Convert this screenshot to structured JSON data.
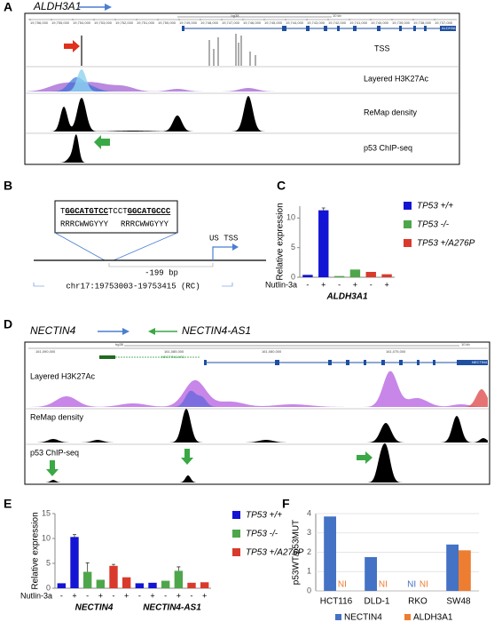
{
  "panel_labels": [
    "A",
    "B",
    "C",
    "D",
    "E",
    "F"
  ],
  "panel_a": {
    "gene": "ALDH3A1",
    "assembly": "hg38",
    "scale": "10 kb",
    "coordinates": [
      "19,756,000",
      "19,755,000",
      "19,754,000",
      "19,753,000",
      "19,752,000",
      "19,751,000",
      "19,750,000",
      "19,749,000",
      "19,748,000",
      "19,747,000",
      "19,746,000",
      "19,745,000",
      "19,744,000",
      "19,743,000",
      "19,742,000",
      "19,741,000",
      "19,740,000",
      "19,739,000",
      "19,738,000",
      "19,737,000"
    ],
    "gene_track_label": "ALDH3A1",
    "tracks": [
      "TSS",
      "Layered H3K27Ac",
      "ReMap density",
      "p53 ChIP-seq"
    ]
  },
  "panel_b": {
    "sequence": [
      "T",
      "GGCATGTCC",
      "TCCT",
      "GGCATGCCC"
    ],
    "motifs": [
      "RRRCWWGYYY",
      "RRRCWWGYYY"
    ],
    "distance": "-199 bp",
    "tss": "US TSS",
    "region": "chr17:19753003-19753415 (RC)"
  },
  "panel_d": {
    "genes": [
      "NECTIN4",
      "NECTIN4-AS1"
    ],
    "assembly": "hg38",
    "scale": "10 kb",
    "coordinates": [
      "161,090,000",
      "161,085,000",
      "161,080,000",
      "161,075,000"
    ],
    "gene_track_labels": [
      "NECTIN4-AS1",
      "NECTIN4"
    ],
    "tracks": [
      "Layered H3K27Ac",
      "ReMap density",
      "p53 ChIP-seq"
    ]
  },
  "chart_data": [
    {
      "type": "bar",
      "y_label": "Relative expression",
      "row_label": "Nutlin-3a",
      "categories": [
        "-",
        "+",
        "-",
        "+",
        "-",
        "+"
      ],
      "groups": [
        "ALDH3A1"
      ],
      "ylim": [
        0,
        12
      ],
      "yticks": [
        0,
        5,
        10
      ],
      "series": [
        {
          "name": "TP53 +/+",
          "color": "#1414d4",
          "values": [
            0.4,
            11.3,
            null,
            null,
            null,
            null
          ],
          "errors": [
            null,
            0.4,
            null,
            null,
            null,
            null
          ]
        },
        {
          "name": "TP53 -/-",
          "color": "#4ea64a",
          "values": [
            null,
            null,
            0.2,
            1.3,
            null,
            null
          ],
          "errors": [
            null,
            null,
            null,
            null,
            null,
            null
          ]
        },
        {
          "name": "TP53 +/A276P",
          "color": "#d93a2b",
          "values": [
            null,
            null,
            null,
            null,
            0.9,
            0.5
          ],
          "errors": [
            null,
            null,
            null,
            null,
            null,
            null
          ]
        }
      ]
    },
    {
      "type": "bar",
      "y_label": "Relative expression",
      "row_label": "Nutlin-3a",
      "categories": [
        "-",
        "+",
        "-",
        "+",
        "-",
        "+",
        "-",
        "+",
        "-",
        "+",
        "-",
        "+"
      ],
      "groups": [
        "NECTIN4",
        "NECTIN4-AS1"
      ],
      "ylim": [
        0,
        15
      ],
      "yticks": [
        0,
        5,
        10,
        15
      ],
      "series": [
        {
          "name": "TP53 +/+",
          "color": "#1414d4",
          "values": [
            1.0,
            10.3,
            null,
            null,
            null,
            null,
            1.0,
            1.1,
            null,
            null,
            null,
            null
          ],
          "errors": [
            null,
            0.5,
            null,
            null,
            null,
            null,
            null,
            null,
            null,
            null,
            null,
            null
          ]
        },
        {
          "name": "TP53 -/-",
          "color": "#4ea64a",
          "values": [
            null,
            null,
            3.3,
            1.7,
            null,
            null,
            null,
            null,
            1.5,
            3.5,
            null,
            null
          ],
          "errors": [
            null,
            null,
            1.8,
            null,
            null,
            null,
            null,
            null,
            null,
            0.8,
            null,
            null
          ]
        },
        {
          "name": "TP53 +/A276P",
          "color": "#d93a2b",
          "values": [
            null,
            null,
            null,
            null,
            4.5,
            2.2,
            null,
            null,
            null,
            null,
            1.1,
            1.2
          ],
          "errors": [
            null,
            null,
            null,
            null,
            0.3,
            null,
            null,
            null,
            null,
            null,
            null,
            null
          ]
        }
      ]
    },
    {
      "type": "grouped_bar",
      "y_label": "p53WT/p53MUT",
      "categories": [
        "HCT116",
        "DLD-1",
        "RKO",
        "SW48"
      ],
      "ylim": [
        0,
        4
      ],
      "yticks": [
        0,
        1,
        2,
        3,
        4
      ],
      "series": [
        {
          "name": "NECTIN4",
          "color": "#4472c4",
          "values": [
            3.85,
            1.75,
            null,
            2.4
          ],
          "value_labels": [
            null,
            null,
            "NI",
            null
          ]
        },
        {
          "name": "ALDH3A1",
          "color": "#ed7d31",
          "values": [
            null,
            null,
            null,
            2.1
          ],
          "value_labels": [
            "NI",
            "NI",
            "NI",
            null
          ]
        }
      ]
    }
  ]
}
